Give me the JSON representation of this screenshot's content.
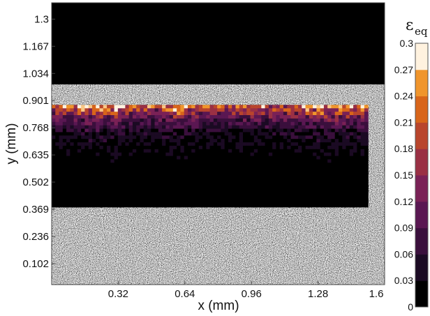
{
  "chart_data": {
    "type": "heatmap",
    "title": "",
    "xlabel": "x (mm)",
    "ylabel": "y (mm)",
    "x_ticks": [
      "0.32",
      "0.64",
      "0.96",
      "1.28",
      "1.6"
    ],
    "y_ticks": [
      "0.102",
      "0.236",
      "0.369",
      "0.502",
      "0.635",
      "0.768",
      "0.901",
      "1.034",
      "1.167",
      "1.3"
    ],
    "xlim": [
      0.0,
      1.6
    ],
    "ylim": [
      0.0,
      1.38
    ],
    "specimen_y_range": [
      0.0,
      0.98
    ],
    "field_x_range": [
      0.0,
      1.52
    ],
    "field_y_range": [
      0.38,
      0.88
    ],
    "colorbar": {
      "label_main": "ε",
      "label_sub": "eq",
      "ticks": [
        "0",
        "0.03",
        "0.06",
        "0.09",
        "0.12",
        "0.15",
        "0.18",
        "0.21",
        "0.24",
        "0.27",
        "0.3"
      ],
      "range": [
        0,
        0.3
      ],
      "levels": 10,
      "colors": [
        "#000000",
        "#1b0a23",
        "#3a0f3c",
        "#5a1752",
        "#7a2156",
        "#9a3044",
        "#b9452c",
        "#d8651a",
        "#f0952c",
        "#f9c684",
        "#fff2df"
      ]
    },
    "profile_x": [
      0.0,
      0.1,
      0.2,
      0.3,
      0.4,
      0.5,
      0.6,
      0.7,
      0.8,
      0.9,
      1.0,
      1.1,
      1.2,
      1.3,
      1.4,
      1.5,
      1.52
    ],
    "profile_surface_strain": [
      0.22,
      0.24,
      0.27,
      0.3,
      0.23,
      0.21,
      0.29,
      0.22,
      0.2,
      0.23,
      0.24,
      0.21,
      0.26,
      0.3,
      0.27,
      0.25,
      0.24
    ],
    "depth_y": [
      0.88,
      0.85,
      0.82,
      0.79,
      0.76,
      0.72,
      0.68,
      0.64,
      0.6,
      0.55,
      0.5,
      0.45,
      0.4
    ],
    "depth_strain_factor": [
      1.0,
      0.7,
      0.48,
      0.34,
      0.25,
      0.19,
      0.14,
      0.1,
      0.07,
      0.05,
      0.03,
      0.02,
      0.01
    ]
  }
}
